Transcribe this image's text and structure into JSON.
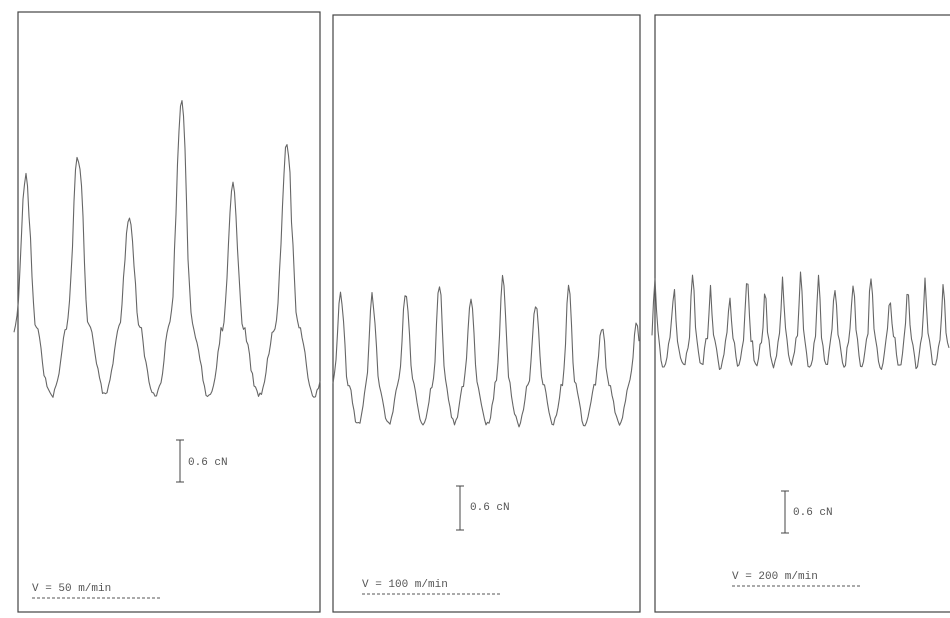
{
  "panels": [
    {
      "scale_label": "0.6 cN",
      "speed_label": "V = 50 m/min"
    },
    {
      "scale_label": "0.6 cN",
      "speed_label": "V = 100 m/min"
    },
    {
      "scale_label": "0.6 cN",
      "speed_label": "V = 200 m/min"
    }
  ]
}
